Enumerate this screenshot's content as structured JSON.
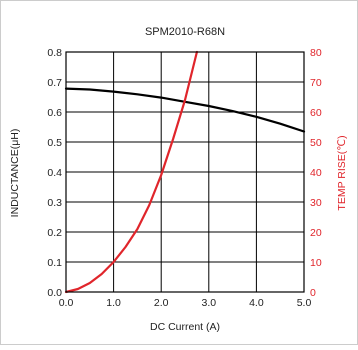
{
  "chart_data": {
    "type": "line",
    "title": "SPM2010-R68N",
    "xlabel": "DC Current (A)",
    "ylabel": "INDUCTANCE(μH)",
    "y2label": "TEMP RISE(℃)",
    "xlim": [
      0,
      5
    ],
    "ylim": [
      0,
      0.8
    ],
    "y2lim": [
      0,
      80
    ],
    "x_ticks": [
      "0.0",
      "1.0",
      "2.0",
      "3.0",
      "4.0",
      "5.0"
    ],
    "y_ticks": [
      "0.0",
      "0.1",
      "0.2",
      "0.3",
      "0.4",
      "0.5",
      "0.6",
      "0.7",
      "0.8"
    ],
    "y2_ticks": [
      "0",
      "10",
      "20",
      "30",
      "40",
      "50",
      "60",
      "70",
      "80"
    ],
    "grid": true,
    "legend": "none",
    "series": [
      {
        "axis": "left",
        "color": "#000000",
        "x": [
          0.0,
          0.5,
          1.0,
          1.5,
          2.0,
          2.5,
          3.0,
          3.5,
          4.0,
          4.5,
          5.0
        ],
        "y": [
          0.678,
          0.675,
          0.668,
          0.659,
          0.648,
          0.634,
          0.62,
          0.603,
          0.584,
          0.561,
          0.535
        ]
      },
      {
        "axis": "right",
        "color": "#e0252b",
        "x": [
          0.0,
          0.25,
          0.5,
          0.75,
          1.0,
          1.25,
          1.5,
          1.75,
          2.0,
          2.25,
          2.5,
          2.75
        ],
        "y": [
          0.0,
          1.0,
          3.0,
          6.0,
          10.0,
          15.0,
          21.0,
          29.0,
          39.0,
          51.0,
          64.0,
          80.0
        ]
      }
    ]
  }
}
